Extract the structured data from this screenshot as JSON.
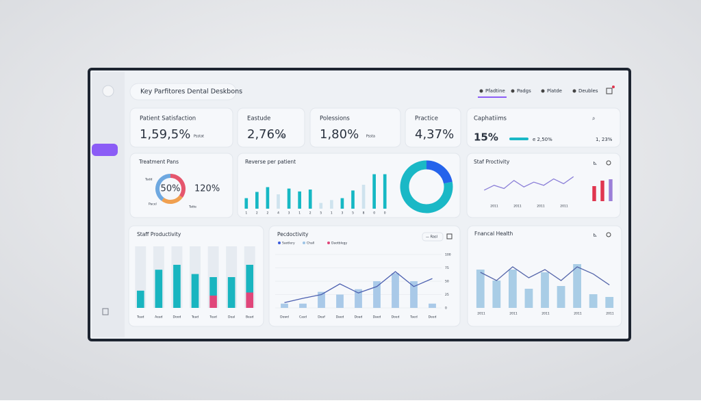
{
  "header": {
    "title": "Key Parfitores Dental Deskbons",
    "tabs": [
      "Pfadtine",
      "Padgs",
      "Platde",
      "Deubles"
    ]
  },
  "kpis": [
    {
      "label": "Patient Satisfaction",
      "value": "1,59,5%",
      "note": "Psstat"
    },
    {
      "label": "Eastude",
      "value": "2,76%",
      "note": "tuv"
    },
    {
      "label": "Polessions",
      "value": "1,80%",
      "note": "Pssta"
    },
    {
      "label": "Practice",
      "value": "4,37%"
    }
  ],
  "capacity": {
    "title": "Caphatiims",
    "value": "15%",
    "compare": "e 2,50%",
    "right": "1, 23%"
  },
  "treatment": {
    "title": "Treatment Pans",
    "center": "50%",
    "side": "120%",
    "labels": [
      "Tadd",
      "Pacel",
      "Tatte"
    ],
    "values": [
      35,
      25,
      40
    ],
    "colors": [
      "#e5566d",
      "#f0a050",
      "#6ea8e0"
    ]
  },
  "revenue": {
    "title": "Reverse per patient",
    "categories": [
      "1",
      "2",
      "2",
      "4",
      "3",
      "1",
      "2",
      "5",
      "1",
      "3",
      "5",
      "8",
      "0",
      "0"
    ],
    "values": [
      22,
      35,
      45,
      30,
      42,
      36,
      40,
      12,
      18,
      22,
      38,
      50,
      72,
      72
    ],
    "color": "#16b8c4",
    "ylim": [
      0,
      100
    ],
    "donut": {
      "values": [
        22,
        78
      ],
      "colors": [
        "#2563eb",
        "#1ab8c6"
      ]
    }
  },
  "staff_small": {
    "title": "Staf Proctivity",
    "line": [
      30,
      45,
      35,
      60,
      40,
      55,
      45,
      65,
      50,
      72
    ],
    "line_color": "#8b7fd8",
    "labels": [
      "2011",
      "2011",
      "2011",
      "2011"
    ],
    "bars": [
      55,
      75,
      80
    ],
    "bar_colors": [
      "#e0364f",
      "#e0364f",
      "#9b7fd8"
    ],
    "ylim": [
      0,
      100
    ]
  },
  "staff": {
    "title": "Staff Productivity",
    "categories": [
      "Tead",
      "Aead",
      "Dood",
      "Tead",
      "Tead",
      "Deal",
      "Bead"
    ],
    "ylim": [
      0,
      100
    ],
    "series": [
      {
        "color": "#e0467a",
        "values": [
          0,
          0,
          0,
          0,
          20,
          0,
          25
        ]
      },
      {
        "color": "#19b5c0",
        "values": [
          28,
          62,
          70,
          55,
          30,
          50,
          45
        ]
      }
    ]
  },
  "productivity": {
    "title": "Pecdoctivity",
    "button": "— Rasl",
    "legend": [
      {
        "name": "Saotlery",
        "color": "#3b5bdb"
      },
      {
        "name": "Chall",
        "color": "#9cc3e6"
      },
      {
        "name": "Daotblegy",
        "color": "#e0467a"
      }
    ],
    "categories": [
      "Dewd",
      "Casd",
      "Deaf",
      "Daed",
      "Doad",
      "Daed",
      "Doed",
      "Taed",
      "Deed"
    ],
    "bars": [
      8,
      8,
      30,
      25,
      35,
      50,
      65,
      50,
      8
    ],
    "line": [
      10,
      18,
      25,
      45,
      28,
      40,
      68,
      40,
      55
    ],
    "ylim": [
      0,
      100
    ],
    "yticks": [
      0,
      25,
      50,
      75,
      100
    ]
  },
  "financial": {
    "title": "Fnancal Health",
    "labels": [
      "2011",
      "2011",
      "2011",
      "2011",
      "2011"
    ],
    "ylim": [
      0,
      100
    ],
    "bars": [
      70,
      50,
      70,
      35,
      65,
      40,
      80,
      25,
      20
    ],
    "line": [
      65,
      50,
      75,
      55,
      70,
      50,
      75,
      62,
      42
    ],
    "bar_color": "#a9cde6",
    "line_color": "#5566aa"
  }
}
